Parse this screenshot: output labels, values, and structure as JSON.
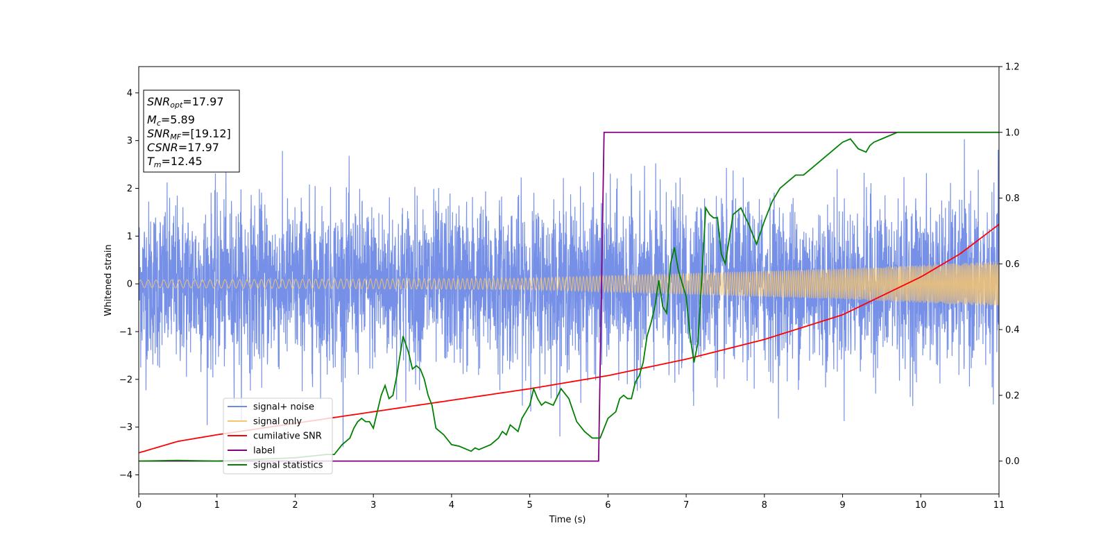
{
  "chart_data": {
    "type": "line",
    "xlabel": "Time (s)",
    "ylabel": "Whitened strain",
    "xlim": [
      0,
      11
    ],
    "ylim": [
      -4.4,
      4.55
    ],
    "y2lim": [
      -0.1,
      1.2
    ],
    "xticks": [
      0,
      1,
      2,
      3,
      4,
      5,
      6,
      7,
      8,
      9,
      10,
      11
    ],
    "yticks": [
      -4,
      -3,
      -2,
      -1,
      0,
      1,
      2,
      3,
      4
    ],
    "y2ticks": [
      "0.0",
      "0.2",
      "0.4",
      "0.6",
      "0.8",
      "1.0",
      "1.2"
    ],
    "grid": false,
    "legend_position": "lower-left",
    "annotation": {
      "lines": [
        {
          "base": "SNR",
          "sub": "opt",
          "value": "=17.97"
        },
        {
          "base": "M",
          "sub": "c",
          "value": "=5.89"
        },
        {
          "base": "SNR",
          "sub": "MF",
          "value": "=[19.12]"
        },
        {
          "base": "CSNR",
          "sub": "",
          "value": "=17.97"
        },
        {
          "base": "T",
          "sub": "m",
          "value": "=12.45"
        }
      ]
    },
    "series": [
      {
        "name": "signal+ noise",
        "color": "#6f8ae6",
        "axis": "left",
        "kind": "noise",
        "sigma": 0.85
      },
      {
        "name": "signal only",
        "color": "#f5c572",
        "axis": "left",
        "kind": "chirp",
        "amplitude_t": [
          0,
          5,
          9,
          11
        ],
        "amplitude_v": [
          0.08,
          0.12,
          0.32,
          0.47
        ]
      },
      {
        "name": "cumilative SNR",
        "color": "#ff0000",
        "axis": "right",
        "x": [
          0,
          0.5,
          1,
          2,
          3,
          4,
          5,
          6,
          7,
          8,
          9,
          10,
          10.5,
          11
        ],
        "y": [
          0.025,
          0.06,
          0.08,
          0.115,
          0.15,
          0.185,
          0.22,
          0.26,
          0.31,
          0.37,
          0.445,
          0.56,
          0.63,
          0.72
        ]
      },
      {
        "name": "label",
        "color": "#800080",
        "axis": "right",
        "x": [
          0,
          5.88,
          5.95,
          11
        ],
        "y": [
          0,
          0,
          1,
          1
        ]
      },
      {
        "name": "signal statistics",
        "color": "#008000",
        "axis": "right",
        "x": [
          0,
          0.5,
          1,
          1.5,
          2,
          2.2,
          2.4,
          2.5,
          2.6,
          2.7,
          2.75,
          2.8,
          2.85,
          2.9,
          2.95,
          3.0,
          3.1,
          3.15,
          3.2,
          3.25,
          3.3,
          3.38,
          3.45,
          3.5,
          3.55,
          3.6,
          3.65,
          3.7,
          3.75,
          3.8,
          3.9,
          4.0,
          4.1,
          4.15,
          4.2,
          4.25,
          4.3,
          4.35,
          4.4,
          4.5,
          4.6,
          4.65,
          4.7,
          4.75,
          4.8,
          4.85,
          4.9,
          4.95,
          5.0,
          5.05,
          5.1,
          5.15,
          5.2,
          5.3,
          5.4,
          5.5,
          5.6,
          5.7,
          5.8,
          5.9,
          6.0,
          6.1,
          6.15,
          6.2,
          6.25,
          6.3,
          6.35,
          6.4,
          6.45,
          6.5,
          6.55,
          6.6,
          6.65,
          6.7,
          6.75,
          6.8,
          6.85,
          6.9,
          7.0,
          7.05,
          7.1,
          7.15,
          7.2,
          7.25,
          7.3,
          7.35,
          7.4,
          7.45,
          7.5,
          7.6,
          7.7,
          7.8,
          7.9,
          8.0,
          8.1,
          8.2,
          8.3,
          8.4,
          8.5,
          8.6,
          8.7,
          8.8,
          8.9,
          9.0,
          9.1,
          9.2,
          9.3,
          9.35,
          9.4,
          9.5,
          9.6,
          9.7,
          9.8,
          9.9,
          10.0,
          10.5,
          11.0
        ],
        "y": [
          0,
          0.002,
          0.0,
          0.005,
          0.01,
          0.015,
          0.02,
          0.02,
          0.05,
          0.07,
          0.1,
          0.12,
          0.13,
          0.12,
          0.12,
          0.1,
          0.2,
          0.23,
          0.19,
          0.2,
          0.26,
          0.38,
          0.33,
          0.28,
          0.29,
          0.28,
          0.25,
          0.2,
          0.17,
          0.1,
          0.08,
          0.05,
          0.045,
          0.04,
          0.035,
          0.03,
          0.04,
          0.035,
          0.04,
          0.05,
          0.07,
          0.09,
          0.08,
          0.11,
          0.1,
          0.09,
          0.13,
          0.15,
          0.17,
          0.22,
          0.19,
          0.17,
          0.18,
          0.17,
          0.22,
          0.19,
          0.12,
          0.09,
          0.07,
          0.07,
          0.13,
          0.15,
          0.19,
          0.2,
          0.19,
          0.19,
          0.24,
          0.26,
          0.3,
          0.38,
          0.42,
          0.47,
          0.55,
          0.47,
          0.45,
          0.6,
          0.65,
          0.58,
          0.5,
          0.38,
          0.3,
          0.36,
          0.56,
          0.77,
          0.75,
          0.74,
          0.74,
          0.63,
          0.6,
          0.75,
          0.77,
          0.72,
          0.66,
          0.73,
          0.79,
          0.83,
          0.85,
          0.87,
          0.87,
          0.89,
          0.91,
          0.93,
          0.95,
          0.97,
          0.98,
          0.95,
          0.94,
          0.96,
          0.97,
          0.98,
          0.99,
          1.0,
          1.0,
          1.0,
          1.0,
          1.0,
          1.0
        ]
      }
    ]
  }
}
